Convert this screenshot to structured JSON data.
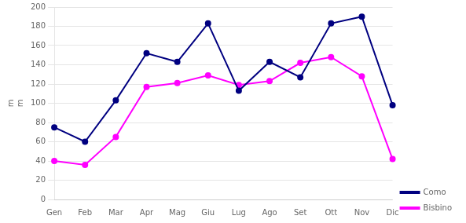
{
  "chart_data": {
    "type": "line",
    "ylabel": "m\nm",
    "categories": [
      "Gen",
      "Feb",
      "Mar",
      "Apr",
      "Mag",
      "Giu",
      "Lug",
      "Ago",
      "Set",
      "Ott",
      "Nov",
      "Dic"
    ],
    "series": [
      {
        "name": "Como",
        "color": "#000080",
        "values": [
          75,
          60,
          103,
          152,
          143,
          183,
          113,
          143,
          127,
          183,
          190,
          98
        ]
      },
      {
        "name": "Bisbino",
        "color": "#FF00FF",
        "values": [
          40,
          36,
          65,
          117,
          121,
          129,
          119,
          123,
          142,
          148,
          128,
          42
        ]
      }
    ],
    "ylim": [
      0,
      200
    ],
    "yticks": [
      0,
      20,
      40,
      60,
      80,
      100,
      120,
      140,
      160,
      180,
      200
    ],
    "grid": true,
    "legend": "lower right",
    "marker": "circle"
  }
}
